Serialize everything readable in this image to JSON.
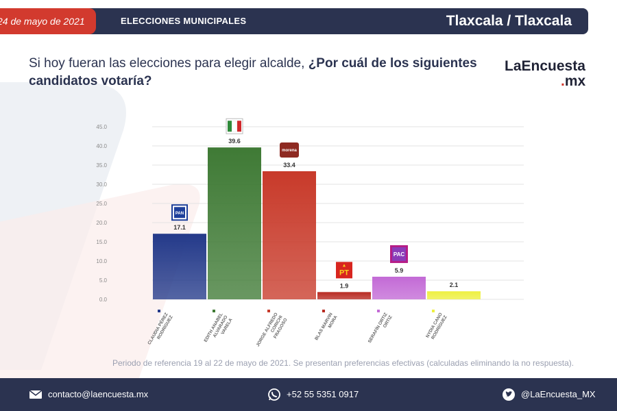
{
  "header": {
    "date": "24 de mayo de 2021",
    "section": "ELECCIONES MUNICIPALES",
    "place": "Tlaxcala / Tlaxcala"
  },
  "question": {
    "part1": "Si hoy fueran las elecciones para elegir alcalde,",
    "part2": "¿Por cuál de los siguientes candidatos votaría?"
  },
  "brand": {
    "line1": "LaEncuesta",
    "line2": ".mx"
  },
  "chart_data": {
    "type": "bar",
    "categories": [
      "CLAUDIA PÉREZ RODRÍGUEZ",
      "EDITH ANABEL ALVARADO VARELA",
      "JORGE ALFREDO CORICHI FRAGOSO",
      "BLAS MARVIN MORA",
      "SERAFÍN ORTIZ ORTIZ",
      "NYDIA CANO RODRÍGUEZ"
    ],
    "values": [
      17.1,
      39.6,
      33.4,
      1.9,
      5.9,
      2.1
    ],
    "value_labels": [
      "17.1",
      "39.6",
      "33.4",
      "1.9",
      "5.9",
      "2.1"
    ],
    "parties": [
      "PAN",
      "PRI",
      "morena",
      "PT",
      "PAC",
      ""
    ],
    "colors": [
      "#243a8a",
      "#3f7a35",
      "#c83a2a",
      "#b82a22",
      "#c36ad6",
      "#eef040"
    ],
    "yticks": [
      "45.0",
      "40.0",
      "35.0",
      "30.0",
      "25.0",
      "20.0",
      "15.0",
      "10.0",
      "5.0",
      "0.0"
    ],
    "ylim": [
      0,
      45
    ],
    "grid": true,
    "title": "",
    "xlabel": "",
    "ylabel": ""
  },
  "footnote": "Periodo de referencia 19 al 22 de mayo de 2021. Se presentan preferencias efectivas (calculadas eliminando la no respuesta).",
  "footer": {
    "email": "contacto@laencuesta.mx",
    "phone": "+52 55 5351 0917",
    "twitter": "@LaEncuesta_MX"
  }
}
